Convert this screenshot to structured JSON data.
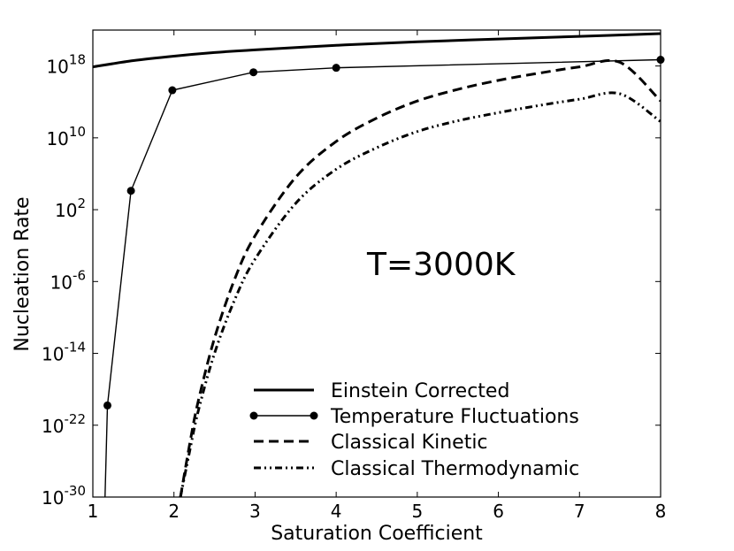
{
  "chart_data": {
    "type": "line",
    "title": "",
    "xlabel": "Saturation Coefficient",
    "ylabel": "Nucleation Rate",
    "xlim": [
      1,
      8
    ],
    "ylim_log10": [
      -30,
      22
    ],
    "y_scale": "log",
    "grid": false,
    "legend_position": "lower-right",
    "annotation": "T=3000K",
    "x_ticks": [
      1,
      2,
      3,
      4,
      5,
      6,
      7,
      8
    ],
    "y_ticks": [
      {
        "base": "10",
        "exp": "-30",
        "log10": -30
      },
      {
        "base": "10",
        "exp": "-22",
        "log10": -22
      },
      {
        "base": "10",
        "exp": "-14",
        "log10": -14
      },
      {
        "base": "10",
        "exp": "-6",
        "log10": -6
      },
      {
        "base": "10",
        "exp": "2",
        "log10": 2
      },
      {
        "base": "10",
        "exp": "10",
        "log10": 10
      },
      {
        "base": "10",
        "exp": "18",
        "log10": 18
      }
    ],
    "series": [
      {
        "name": "Einstein Corrected",
        "style": "solid-thick",
        "markers": false,
        "x": [
          1,
          1.5,
          2,
          2.5,
          3,
          4,
          5,
          6,
          7,
          8
        ],
        "log10_y": [
          17.9,
          18.6,
          19.1,
          19.5,
          19.8,
          20.3,
          20.7,
          21.0,
          21.3,
          21.6
        ]
      },
      {
        "name": "Temperature Fluctuations",
        "style": "solid-thin",
        "markers": true,
        "x": [
          1.15,
          1.18,
          1.47,
          1.98,
          2.98,
          4.0,
          8.0
        ],
        "log10_y": [
          -30,
          -19.8,
          4.1,
          15.3,
          17.3,
          17.8,
          18.7
        ]
      },
      {
        "name": "Classical Kinetic",
        "style": "dashed",
        "markers": false,
        "x": [
          2.08,
          2.2,
          2.3,
          2.5,
          2.75,
          3.0,
          3.5,
          4.0,
          4.5,
          5.0,
          5.5,
          6.0,
          6.5,
          7.0,
          7.5,
          8.0
        ],
        "log10_y": [
          -30,
          -23.8,
          -19.3,
          -12.3,
          -5.7,
          -0.9,
          5.6,
          9.6,
          12.2,
          14.1,
          15.4,
          16.4,
          17.2,
          17.9,
          18.4,
          14.1
        ]
      },
      {
        "name": "Classical Thermodynamic",
        "style": "dash-dot-dot",
        "markers": false,
        "x": [
          2.08,
          2.2,
          2.3,
          2.5,
          2.75,
          3.0,
          3.5,
          4.0,
          4.5,
          5.0,
          5.5,
          6.0,
          6.5,
          7.0,
          7.5,
          8.0
        ],
        "log10_y": [
          -30,
          -24.6,
          -20.4,
          -14.0,
          -8.0,
          -3.5,
          2.7,
          6.5,
          8.9,
          10.7,
          11.9,
          12.8,
          13.6,
          14.3,
          14.9,
          11.8
        ]
      }
    ]
  }
}
